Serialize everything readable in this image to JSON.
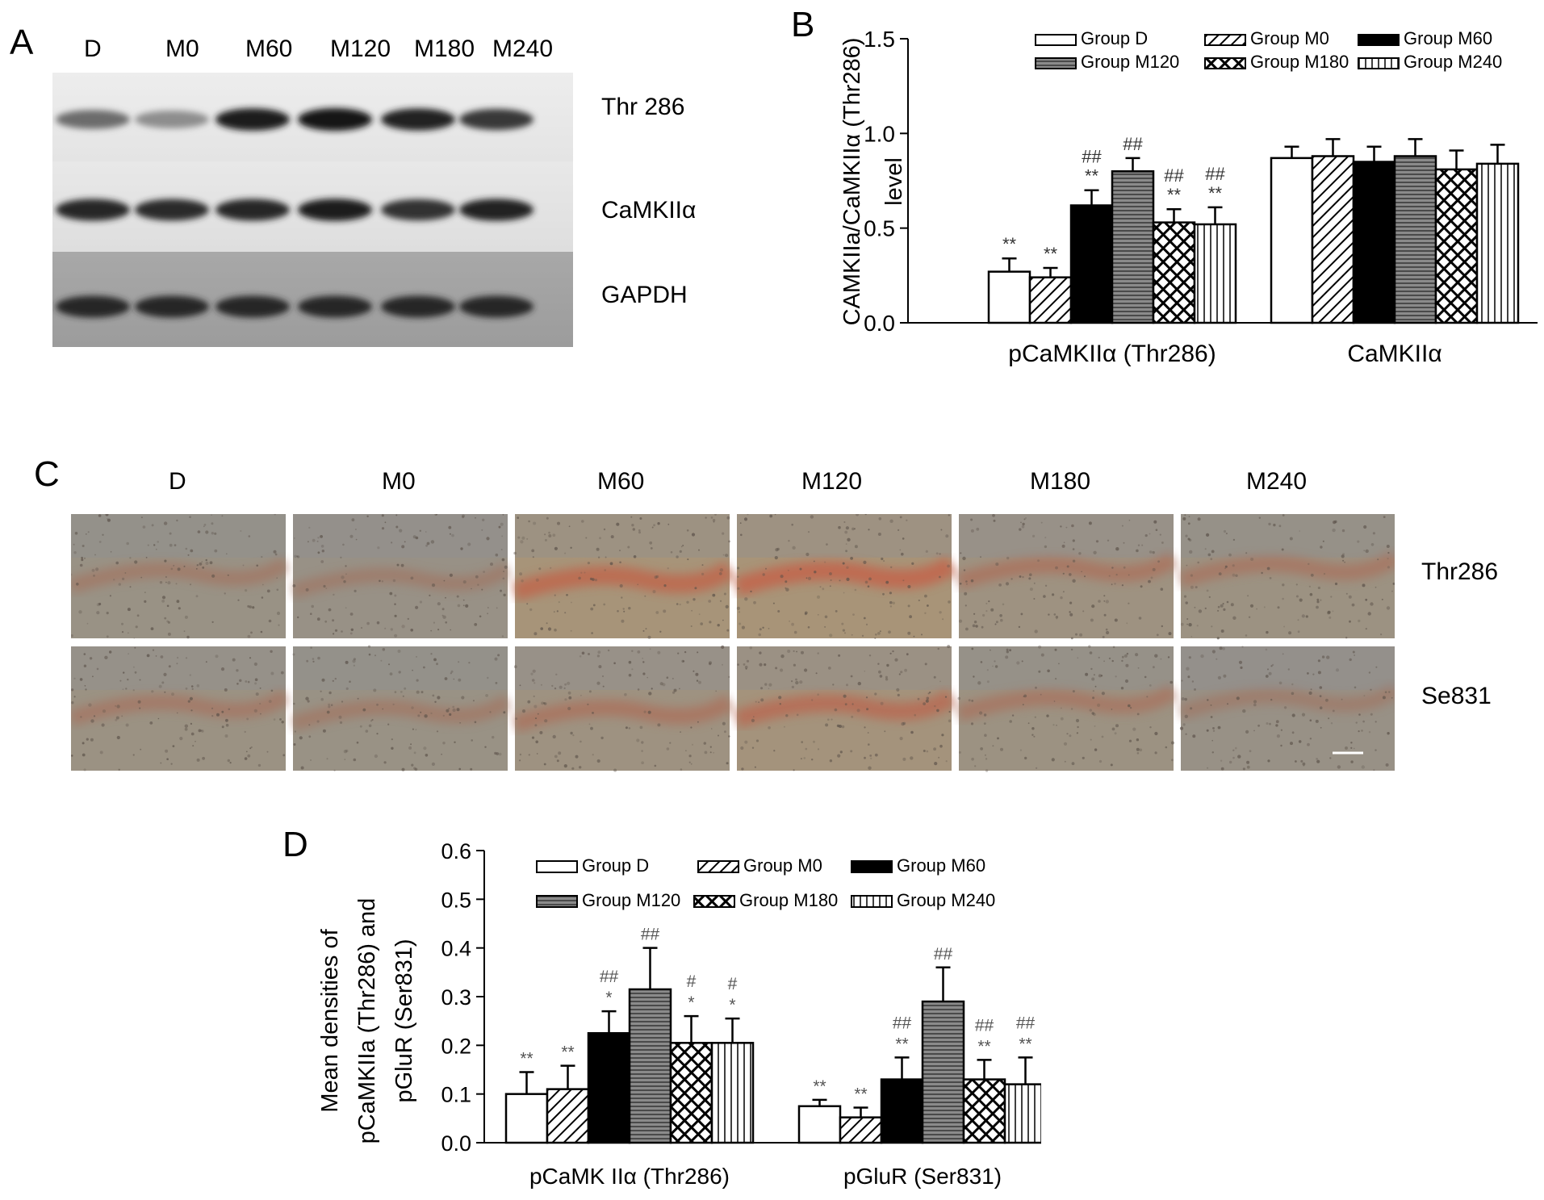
{
  "panelA": {
    "label": "A",
    "lanes": [
      "D",
      "M0",
      "M60",
      "M120",
      "M180",
      "M240"
    ],
    "rows": [
      {
        "name": "Thr 286",
        "intensity": [
          0.55,
          0.38,
          0.95,
          1.0,
          0.92,
          0.82
        ]
      },
      {
        "name": "CaMKIIα",
        "intensity": [
          0.9,
          0.88,
          0.9,
          0.95,
          0.85,
          0.93
        ]
      },
      {
        "name": "GAPDH",
        "intensity": [
          0.9,
          0.9,
          0.9,
          0.9,
          0.9,
          0.9
        ]
      }
    ]
  },
  "panelC": {
    "label": "C",
    "columns": [
      "D",
      "M0",
      "M60",
      "M120",
      "M180",
      "M240"
    ],
    "rows": [
      "Thr286",
      "Se831"
    ]
  },
  "legend_groups": [
    "Group D",
    "Group M0",
    "Group M60",
    "Group M120",
    "Group M180",
    "Group M240"
  ],
  "chart_data": [
    {
      "panel": "B",
      "type": "bar",
      "ylabel_line1": "CAMKIIa/CaMKIIα (Thr286)",
      "ylabel_line2": "level",
      "xlabel": "",
      "ylim": [
        0,
        1.5
      ],
      "yticks": [
        "0.0",
        "0.5",
        "1.0",
        "1.5"
      ],
      "categories": [
        "pCaMKIIα (Thr286)",
        "CaMKIIα"
      ],
      "series": [
        {
          "name": "Group D",
          "values": [
            0.27,
            0.87
          ],
          "errors": [
            0.07,
            0.06
          ],
          "marks": [
            "**",
            ""
          ]
        },
        {
          "name": "Group M0",
          "values": [
            0.24,
            0.88
          ],
          "errors": [
            0.05,
            0.09
          ],
          "marks": [
            "**",
            ""
          ]
        },
        {
          "name": "Group M60",
          "values": [
            0.62,
            0.85
          ],
          "errors": [
            0.08,
            0.08
          ],
          "marks": [
            "##\n**",
            ""
          ]
        },
        {
          "name": "Group M120",
          "values": [
            0.8,
            0.88
          ],
          "errors": [
            0.07,
            0.09
          ],
          "marks": [
            "##",
            ""
          ]
        },
        {
          "name": "Group M180",
          "values": [
            0.53,
            0.81
          ],
          "errors": [
            0.07,
            0.1
          ],
          "marks": [
            "##\n**",
            ""
          ]
        },
        {
          "name": "Group M240",
          "values": [
            0.52,
            0.84
          ],
          "errors": [
            0.09,
            0.1
          ],
          "marks": [
            "##\n**",
            ""
          ]
        }
      ]
    },
    {
      "panel": "D",
      "type": "bar",
      "ylabel_line1": "Mean densities of",
      "ylabel_line2": "pCaMKIIa (Thr286) and",
      "ylabel_line3": "pGluR (Ser831)",
      "xlabel": "",
      "ylim": [
        0,
        0.6
      ],
      "yticks": [
        "0.0",
        "0.1",
        "0.2",
        "0.3",
        "0.4",
        "0.5",
        "0.6"
      ],
      "categories": [
        "pCaMK IIα (Thr286)",
        "pGluR (Ser831)"
      ],
      "series": [
        {
          "name": "Group D",
          "values": [
            0.1,
            0.075
          ],
          "errors": [
            0.045,
            0.013
          ],
          "marks": [
            "**",
            "**"
          ]
        },
        {
          "name": "Group M0",
          "values": [
            0.11,
            0.052
          ],
          "errors": [
            0.048,
            0.02
          ],
          "marks": [
            "**",
            "**"
          ]
        },
        {
          "name": "Group M60",
          "values": [
            0.225,
            0.13
          ],
          "errors": [
            0.045,
            0.045
          ],
          "marks": [
            "##\n*",
            "##\n**"
          ]
        },
        {
          "name": "Group M120",
          "values": [
            0.315,
            0.29
          ],
          "errors": [
            0.085,
            0.07
          ],
          "marks": [
            "##",
            "##"
          ]
        },
        {
          "name": "Group M180",
          "values": [
            0.205,
            0.13
          ],
          "errors": [
            0.055,
            0.04
          ],
          "marks": [
            "#\n*",
            "##\n**"
          ]
        },
        {
          "name": "Group M240",
          "values": [
            0.205,
            0.12
          ],
          "errors": [
            0.05,
            0.055
          ],
          "marks": [
            "#\n*",
            "##\n**"
          ]
        }
      ]
    }
  ]
}
